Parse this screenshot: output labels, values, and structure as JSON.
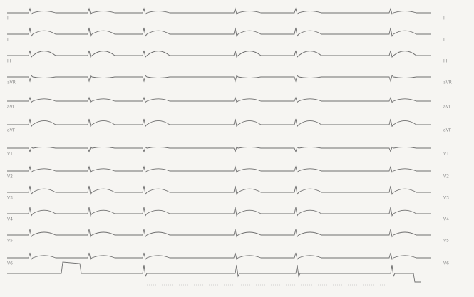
{
  "leads": [
    "I",
    "II",
    "III",
    "aVR",
    "aVL",
    "aVF",
    "V1",
    "V2",
    "V3",
    "V4",
    "V5",
    "V6"
  ]
}
